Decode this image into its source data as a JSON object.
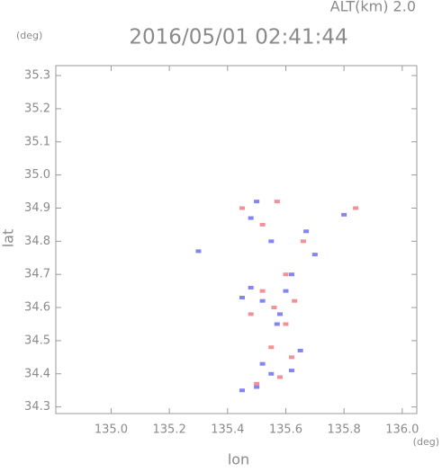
{
  "chart_data": {
    "type": "scatter",
    "title": "2016/05/01 02:41:44",
    "annotation": "ALT(km) 2.0",
    "y_unit": "(deg)",
    "x_unit": "(deg)",
    "xlabel": "lon",
    "ylabel": "lat",
    "xlim": [
      134.81,
      136.05
    ],
    "ylim": [
      34.28,
      35.33
    ],
    "xticks": [
      {
        "value": 135,
        "label": "135.0"
      },
      135.2,
      135.4,
      135.6,
      135.8,
      {
        "value": 136,
        "label": "136.0"
      }
    ],
    "yticks": [
      34.3,
      34.4,
      34.5,
      34.6,
      34.7,
      34.8,
      34.9,
      {
        "value": 35,
        "label": "35.0"
      },
      35.1,
      35.2,
      35.3
    ],
    "series": [
      {
        "color": "#6f6ff2",
        "x": [
          135.45,
          135.5,
          135.55,
          135.62,
          135.52,
          135.65,
          135.52,
          135.6,
          135.48,
          135.58,
          135.62,
          135.7,
          135.55,
          135.48,
          135.67,
          135.8,
          135.3,
          135.57,
          135.45,
          135.5
        ],
        "values": [
          34.35,
          34.36,
          34.4,
          34.41,
          34.43,
          34.47,
          34.62,
          34.65,
          34.66,
          34.58,
          34.7,
          34.76,
          34.8,
          34.87,
          34.83,
          34.88,
          34.77,
          34.55,
          34.63,
          34.92
        ]
      },
      {
        "color": "#f07f86",
        "x": [
          135.58,
          135.5,
          135.55,
          135.62,
          135.56,
          135.52,
          135.63,
          135.6,
          135.66,
          135.57,
          135.84,
          135.45,
          135.52,
          135.6,
          135.48
        ],
        "values": [
          34.39,
          34.37,
          34.48,
          34.45,
          34.6,
          34.65,
          34.62,
          34.55,
          34.8,
          34.92,
          34.9,
          34.9,
          34.85,
          34.7,
          34.58
        ]
      }
    ]
  }
}
